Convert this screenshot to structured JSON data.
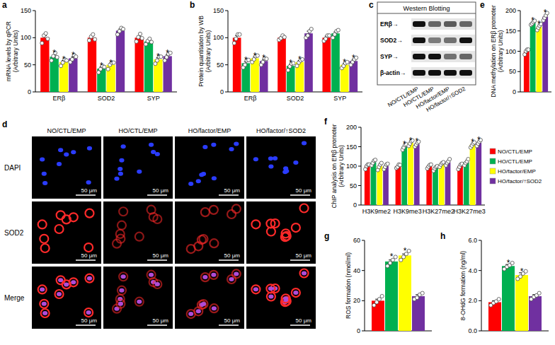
{
  "chart_data": [
    {
      "panel": "a",
      "type": "bar",
      "y_label": "mRNA levels by qPCR (Arbitrary Units)",
      "categories": [
        "ERβ",
        "SOD2",
        "SYP"
      ],
      "ylim": [
        0,
        150
      ],
      "yticks": [
        0,
        50,
        100,
        150
      ],
      "series": [
        {
          "color": "#ff0000",
          "values": [
            100,
            100,
            100
          ],
          "errors": [
            4,
            3,
            3
          ],
          "points": [
            [
              90,
              104,
              108,
              98
            ],
            [
              95,
              102,
              106,
              97
            ],
            [
              93,
              101,
              107,
              99
            ]
          ],
          "value_annotations": [
            null,
            null,
            null
          ]
        },
        {
          "color": "#00b050",
          "values": [
            65,
            43,
            93
          ],
          "errors": [
            3,
            3,
            2
          ],
          "points": [
            [
              58,
              66,
              72,
              64
            ],
            [
              36,
              42,
              48,
              46
            ],
            [
              88,
              94,
              98,
              92
            ]
          ],
          "value_annotations": [
            "*",
            "*",
            null
          ]
        },
        {
          "color": "#ffff00",
          "values": [
            55,
            50,
            60
          ],
          "errors": [
            3,
            3,
            3
          ],
          "points": [
            [
              48,
              54,
              60,
              58
            ],
            [
              42,
              50,
              54,
              54
            ],
            [
              52,
              58,
              65,
              65
            ]
          ],
          "value_annotations": [
            "*",
            "*",
            "*"
          ]
        },
        {
          "color": "#7030a0",
          "values": [
            62,
            113,
            66
          ],
          "errors": [
            3,
            3,
            3
          ],
          "points": [
            [
              55,
              60,
              68,
              65
            ],
            [
              106,
              112,
              118,
              116
            ],
            [
              58,
              64,
              70,
              72
            ]
          ],
          "value_annotations": [
            "*",
            null,
            "*"
          ]
        }
      ]
    },
    {
      "panel": "b",
      "type": "bar",
      "y_label": "Protein quantitation by WB (Arbitrary Units)",
      "categories": [
        "ERβ",
        "SOD2",
        "SYP"
      ],
      "ylim": [
        0,
        150
      ],
      "yticks": [
        0,
        50,
        100,
        150
      ],
      "series": [
        {
          "color": "#ff0000",
          "values": [
            100,
            100,
            100
          ],
          "errors": [
            4,
            2,
            3
          ],
          "points": [
            [
              90,
              98,
              106,
              106
            ],
            [
              96,
              99,
              104,
              101
            ],
            [
              94,
              98,
              104,
              104
            ]
          ],
          "value_annotations": [
            null,
            null,
            null
          ]
        },
        {
          "color": "#00b050",
          "values": [
            53,
            48,
            108
          ],
          "errors": [
            3,
            3,
            3
          ],
          "points": [
            [
              45,
              50,
              58,
              59
            ],
            [
              40,
              47,
              52,
              53
            ],
            [
              100,
              106,
              112,
              114
            ]
          ],
          "value_annotations": [
            "*",
            "*",
            null
          ]
        },
        {
          "color": "#ffff00",
          "values": [
            62,
            55,
            50
          ],
          "errors": [
            3,
            3,
            3
          ],
          "points": [
            [
              55,
              60,
              66,
              67
            ],
            [
              48,
              54,
              58,
              60
            ],
            [
              44,
              48,
              53,
              55
            ]
          ],
          "value_annotations": [
            "*",
            "*",
            "*"
          ]
        },
        {
          "color": "#7030a0",
          "values": [
            57,
            108,
            57
          ],
          "errors": [
            3,
            4,
            3
          ],
          "points": [
            [
              50,
              55,
              62,
              61
            ],
            [
              100,
              104,
              112,
              116
            ],
            [
              50,
              55,
              60,
              63
            ]
          ],
          "value_annotations": [
            "*",
            null,
            "*"
          ]
        }
      ]
    },
    {
      "panel": "e",
      "type": "bar",
      "y_label": "DNA methylation on ERβ promoter (Arbitrary Units)",
      "categories": [
        null
      ],
      "ylim": [
        0,
        200
      ],
      "yticks": [
        0,
        50,
        100,
        150,
        200
      ],
      "series": [
        {
          "color": "#ff0000",
          "values": [
            100
          ],
          "errors": [
            4
          ],
          "points": [
            [
              92,
              100,
              104,
              104
            ]
          ],
          "value_annotations": [
            null
          ]
        },
        {
          "color": "#00b050",
          "values": [
            170
          ],
          "errors": [
            3
          ],
          "points": [
            [
              165,
              168,
              172,
              175
            ]
          ],
          "value_annotations": [
            "*"
          ]
        },
        {
          "color": "#ffff00",
          "values": [
            160
          ],
          "errors": [
            4
          ],
          "points": [
            [
              152,
              158,
              163,
              167
            ]
          ],
          "value_annotations": [
            "*"
          ]
        },
        {
          "color": "#7030a0",
          "values": [
            185
          ],
          "errors": [
            4
          ],
          "points": [
            [
              176,
              182,
              188,
              194
            ]
          ],
          "value_annotations": [
            "*"
          ]
        }
      ]
    },
    {
      "panel": "f",
      "type": "bar",
      "y_label": "ChIP analysis on ERβ promoter (Arbitrary Units)",
      "categories": [
        "H3K9me2",
        "H3K9me3",
        "H3K27me2",
        "H3K27me3"
      ],
      "ylim": [
        0,
        200
      ],
      "yticks": [
        0,
        50,
        100,
        150,
        200
      ],
      "legend": "right",
      "series": [
        {
          "name": "NO/CTL/EMP",
          "color": "#ff0000",
          "values": [
            100,
            100,
            100,
            100
          ],
          "errors": [
            4,
            3,
            3,
            4
          ],
          "points": [
            [
              92,
              100,
              104,
              104
            ],
            [
              95,
              98,
              104,
              103
            ],
            [
              94,
              99,
              103,
              104
            ],
            [
              92,
              98,
              104,
              106
            ]
          ],
          "value_annotations": [
            null,
            null,
            null,
            null
          ]
        },
        {
          "name": "HO/CTL/EMP",
          "color": "#00b050",
          "values": [
            110,
            150,
            95,
            110
          ],
          "errors": [
            4,
            4,
            3,
            4
          ],
          "points": [
            [
              102,
              108,
              114,
              116
            ],
            [
              142,
              148,
              154,
              156
            ],
            [
              88,
              94,
              98,
              100
            ],
            [
              102,
              108,
              112,
              118
            ]
          ],
          "value_annotations": [
            null,
            "*",
            null,
            null
          ]
        },
        {
          "name": "HO/factor/EMP",
          "color": "#ffff00",
          "values": [
            100,
            160,
            105,
            155
          ],
          "errors": [
            4,
            4,
            3,
            4
          ],
          "points": [
            [
              90,
              98,
              104,
              108
            ],
            [
              152,
              158,
              164,
              166
            ],
            [
              98,
              104,
              108,
              110
            ],
            [
              148,
              153,
              158,
              161
            ]
          ],
          "value_annotations": [
            null,
            "*",
            null,
            "*"
          ]
        },
        {
          "name": "HO/factor/↑SOD2",
          "color": "#7030a0",
          "values": [
            100,
            157,
            110,
            160
          ],
          "errors": [
            4,
            4,
            4,
            4
          ],
          "points": [
            [
              92,
              98,
              104,
              106
            ],
            [
              150,
              155,
              160,
              163
            ],
            [
              102,
              108,
              112,
              118
            ],
            [
              152,
              158,
              163,
              167
            ]
          ],
          "value_annotations": [
            null,
            "*",
            null,
            "*"
          ]
        }
      ]
    },
    {
      "panel": "g",
      "type": "bar",
      "y_label": "ROS formation (nmol/ml)",
      "categories": [
        null
      ],
      "ylim": [
        0,
        60
      ],
      "yticks": [
        0,
        20,
        40,
        60
      ],
      "series": [
        {
          "color": "#ff0000",
          "values": [
            20
          ],
          "errors": [
            1
          ],
          "points": [
            [
              17,
              19,
              21,
              23
            ]
          ],
          "value_annotations": [
            null
          ]
        },
        {
          "color": "#00b050",
          "values": [
            46
          ],
          "errors": [
            1
          ],
          "points": [
            [
              43,
              45,
              47,
              49
            ]
          ],
          "value_annotations": [
            "*"
          ]
        },
        {
          "color": "#ffff00",
          "values": [
            50
          ],
          "errors": [
            1
          ],
          "points": [
            [
              47,
              49,
              51,
              53
            ]
          ],
          "value_annotations": [
            "*"
          ]
        },
        {
          "color": "#7030a0",
          "values": [
            23
          ],
          "errors": [
            1
          ],
          "points": [
            [
              21,
              22,
              24,
              25
            ]
          ],
          "value_annotations": [
            null
          ]
        }
      ]
    },
    {
      "panel": "h",
      "type": "bar",
      "y_label": "8-OHdG formation (ng/ml)",
      "categories": [
        null
      ],
      "ylim": [
        0,
        6
      ],
      "yticks": [
        {
          "value": 0,
          "label": "0.0"
        },
        {
          "value": 2,
          "label": "2.0"
        },
        {
          "value": 4,
          "label": "4.0"
        },
        {
          "value": 6,
          "label": "6.0"
        }
      ],
      "series": [
        {
          "color": "#ff0000",
          "values": [
            1.9
          ],
          "errors": [
            0.1
          ],
          "points": [
            [
              1.7,
              1.85,
              1.95,
              2.1
            ]
          ],
          "value_annotations": [
            null
          ]
        },
        {
          "color": "#00b050",
          "values": [
            4.3
          ],
          "errors": [
            0.1
          ],
          "points": [
            [
              4.1,
              4.25,
              4.35,
              4.5
            ]
          ],
          "value_annotations": [
            "*"
          ]
        },
        {
          "color": "#ffff00",
          "values": [
            3.7
          ],
          "errors": [
            0.15
          ],
          "points": [
            [
              3.45,
              3.6,
              3.8,
              3.95
            ]
          ],
          "value_annotations": [
            "*"
          ]
        },
        {
          "color": "#7030a0",
          "values": [
            2.3
          ],
          "errors": [
            0.1
          ],
          "points": [
            [
              2.1,
              2.25,
              2.35,
              2.5
            ]
          ],
          "value_annotations": [
            null
          ]
        }
      ]
    }
  ],
  "western_blot": {
    "panel": "c",
    "title": "Western Blotting",
    "rows": [
      {
        "label": "ERβ→",
        "band_levels": [
          1,
          0.6,
          0.65,
          0.6
        ]
      },
      {
        "label": "SOD2→",
        "band_levels": [
          1,
          0.5,
          0.55,
          1
        ]
      },
      {
        "label": "SYP→",
        "band_levels": [
          1,
          1,
          0.55,
          0.6
        ]
      },
      {
        "label": "β-actin→",
        "band_levels": [
          1,
          1,
          1,
          1
        ]
      }
    ],
    "columns": [
      "NO/CTL/EMP",
      "HO/CTL/EMP",
      "HO/factor/EMP",
      "HO/factor/↑SOD2"
    ]
  },
  "immunofluorescence": {
    "panel": "d",
    "rows": [
      "DAPI",
      "SOD2",
      "Merge"
    ],
    "columns": [
      "NO/CTL/EMP",
      "HO/CTL/EMP",
      "HO/factor/EMP",
      "HO/factor/↑SOD2"
    ],
    "scale_bar": "50 μm"
  }
}
